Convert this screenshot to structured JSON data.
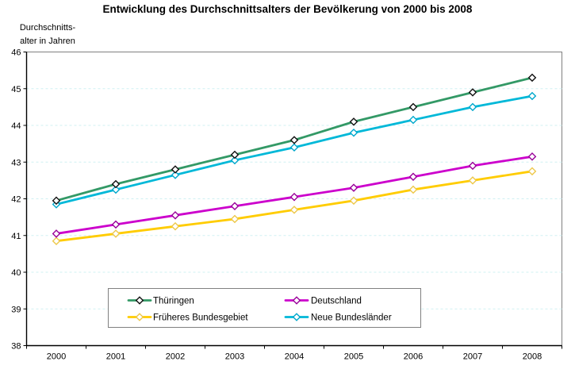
{
  "header": {
    "title": "Entwicklung des Durchschnittsalters der Bevölkerung von 2000 bis 2008"
  },
  "y_axis_title": {
    "line1": "Durchschnitts-",
    "line2": "alter in Jahren"
  },
  "chart_data": {
    "type": "line",
    "title": "Entwicklung des Durchschnittsalters der Bevölkerung von 2000 bis 2008",
    "ylabel": "Durchschnitts- alter in Jahren",
    "xlabel": "",
    "categories": [
      "2000",
      "2001",
      "2002",
      "2003",
      "2004",
      "2005",
      "2006",
      "2007",
      "2008"
    ],
    "ylim": [
      38,
      46
    ],
    "y_ticks": [
      38,
      39,
      40,
      41,
      42,
      43,
      44,
      45,
      46
    ],
    "grid": true,
    "gridline_color": "#CFF0F2",
    "plot_border_color": "#808080",
    "axis_color": "#000000",
    "legend_position": "bottom-center",
    "legend_columns": 2,
    "series": [
      {
        "name": "Thüringen",
        "color": "#339966",
        "marker_stroke": "#111111",
        "values": [
          41.95,
          42.4,
          42.8,
          43.2,
          43.6,
          44.1,
          44.5,
          44.9,
          45.3
        ]
      },
      {
        "name": "Deutschland",
        "color": "#CC00CC",
        "marker_stroke": "#990099",
        "values": [
          41.05,
          41.3,
          41.55,
          41.8,
          42.05,
          42.3,
          42.6,
          42.9,
          43.15
        ]
      },
      {
        "name": "Früheres Bundesgebiet",
        "color": "#FFCC00",
        "marker_stroke": "#EDC84A",
        "values": [
          40.85,
          41.05,
          41.25,
          41.45,
          41.7,
          41.95,
          42.25,
          42.5,
          42.75
        ]
      },
      {
        "name": "Neue Bundesländer",
        "color": "#00B8D8",
        "marker_stroke": "#00A8CC",
        "values": [
          41.85,
          42.25,
          42.65,
          43.05,
          43.4,
          43.8,
          44.15,
          44.5,
          44.8
        ]
      }
    ],
    "draw_order": [
      2,
      1,
      3,
      0
    ]
  }
}
